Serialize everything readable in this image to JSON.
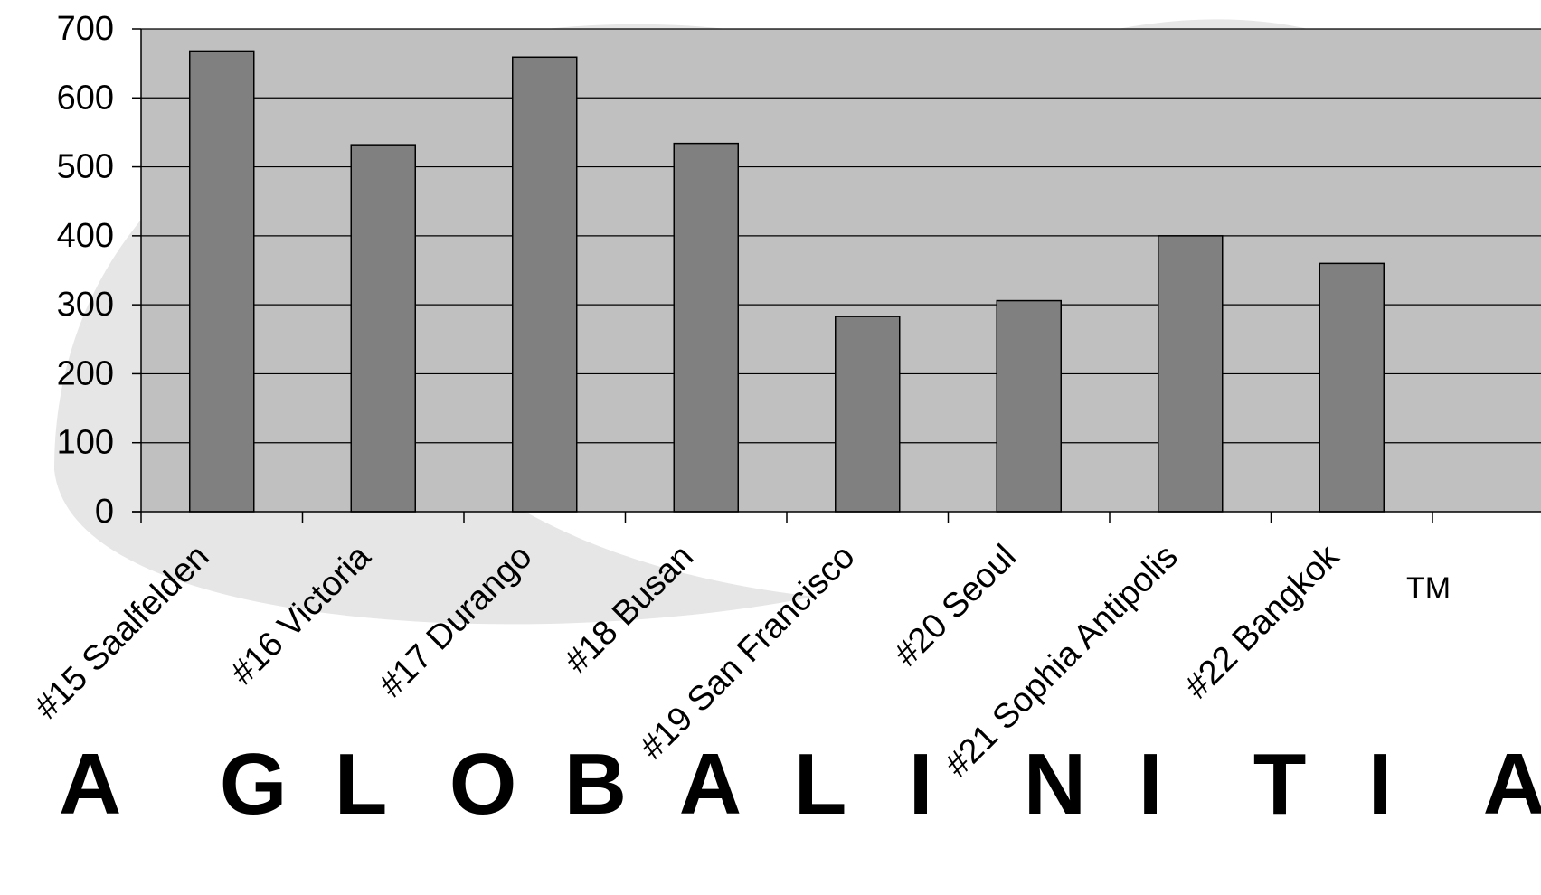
{
  "watermark": {
    "text": "A GLOBAL INITIATIVE",
    "mark": "TM"
  },
  "colors": {
    "plot_background": "#c0c0c0",
    "bar_fill": "#808080",
    "bar_stroke": "#000000",
    "gridline": "#000000",
    "watermark": "#e6e6e6"
  },
  "chart_data": {
    "type": "bar",
    "title": "",
    "xlabel": "",
    "ylabel": "",
    "categories": [
      "#15 Saalfelden",
      "#16 Victoria",
      "#17 Durango",
      "#18 Busan",
      "#19 San Francisco",
      "#20 Seoul",
      "#21 Sophia Antipolis",
      "#22 Bangkok"
    ],
    "values": [
      668,
      532,
      659,
      534,
      283,
      306,
      400,
      360
    ],
    "ylim": [
      0,
      700
    ],
    "yticks": [
      0,
      100,
      200,
      300,
      400,
      500,
      600,
      700
    ],
    "grid": true,
    "legend": "none"
  }
}
